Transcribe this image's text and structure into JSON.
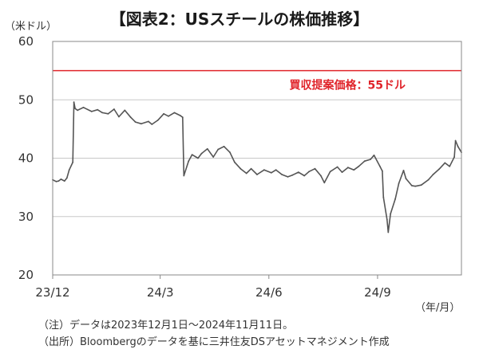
{
  "title": "【図表2：USスチールの株価推移】",
  "y_unit": "（米ドル）",
  "x_unit": "（年/月）",
  "notes": [
    "（注）データは2023年12月1日～2024年11月11日。",
    "（出所）Bloombergのデータを基に三井住友DSアセットマネジメント作成"
  ],
  "chart_data": {
    "type": "line",
    "title": "【図表2：USスチールの株価推移】",
    "xlabel": "（年/月）",
    "ylabel": "（米ドル）",
    "ylim": [
      20,
      60
    ],
    "yticks": [
      20,
      30,
      40,
      50,
      60
    ],
    "xticks": [
      "23/12",
      "24/3",
      "24/6",
      "24/9"
    ],
    "xlim": [
      "2023-12-01",
      "2024-11-11"
    ],
    "grid": "horizontal",
    "reference_line": {
      "value": 55,
      "label": "買収提案価格：55ドル",
      "color": "#e0242a"
    },
    "series": [
      {
        "color": "#555555",
        "points": [
          [
            "2023-12-01",
            36.3
          ],
          [
            "2023-12-04",
            36.0
          ],
          [
            "2023-12-06",
            36.1
          ],
          [
            "2023-12-08",
            36.4
          ],
          [
            "2023-12-11",
            36.1
          ],
          [
            "2023-12-13",
            36.6
          ],
          [
            "2023-12-15",
            38.0
          ],
          [
            "2023-12-18",
            39.3
          ],
          [
            "2023-12-19",
            49.6
          ],
          [
            "2023-12-20",
            48.5
          ],
          [
            "2023-12-22",
            48.2
          ],
          [
            "2023-12-27",
            48.7
          ],
          [
            "2024-01-03",
            48.0
          ],
          [
            "2024-01-08",
            48.3
          ],
          [
            "2024-01-12",
            47.8
          ],
          [
            "2024-01-17",
            47.6
          ],
          [
            "2024-01-22",
            48.4
          ],
          [
            "2024-01-26",
            47.1
          ],
          [
            "2024-01-31",
            48.2
          ],
          [
            "2024-02-05",
            47.0
          ],
          [
            "2024-02-09",
            46.2
          ],
          [
            "2024-02-14",
            45.9
          ],
          [
            "2024-02-20",
            46.3
          ],
          [
            "2024-02-23",
            45.8
          ],
          [
            "2024-02-28",
            46.5
          ],
          [
            "2024-03-04",
            47.6
          ],
          [
            "2024-03-08",
            47.2
          ],
          [
            "2024-03-13",
            47.8
          ],
          [
            "2024-03-18",
            47.3
          ],
          [
            "2024-03-20",
            47.0
          ],
          [
            "2024-03-21",
            37.0
          ],
          [
            "2024-03-25",
            39.5
          ],
          [
            "2024-03-28",
            40.6
          ],
          [
            "2024-04-02",
            40.0
          ],
          [
            "2024-04-05",
            40.8
          ],
          [
            "2024-04-10",
            41.6
          ],
          [
            "2024-04-15",
            40.2
          ],
          [
            "2024-04-19",
            41.5
          ],
          [
            "2024-04-24",
            42.0
          ],
          [
            "2024-04-29",
            41.0
          ],
          [
            "2024-05-03",
            39.3
          ],
          [
            "2024-05-08",
            38.2
          ],
          [
            "2024-05-13",
            37.4
          ],
          [
            "2024-05-17",
            38.2
          ],
          [
            "2024-05-22",
            37.2
          ],
          [
            "2024-05-28",
            38.0
          ],
          [
            "2024-06-03",
            37.5
          ],
          [
            "2024-06-07",
            38.0
          ],
          [
            "2024-06-12",
            37.2
          ],
          [
            "2024-06-17",
            36.8
          ],
          [
            "2024-06-21",
            37.1
          ],
          [
            "2024-06-26",
            37.6
          ],
          [
            "2024-07-01",
            37.0
          ],
          [
            "2024-07-05",
            37.7
          ],
          [
            "2024-07-10",
            38.2
          ],
          [
            "2024-07-15",
            37.0
          ],
          [
            "2024-07-18",
            35.8
          ],
          [
            "2024-07-23",
            37.7
          ],
          [
            "2024-07-29",
            38.5
          ],
          [
            "2024-08-02",
            37.6
          ],
          [
            "2024-08-07",
            38.4
          ],
          [
            "2024-08-12",
            38.0
          ],
          [
            "2024-08-16",
            38.6
          ],
          [
            "2024-08-21",
            39.5
          ],
          [
            "2024-08-26",
            39.8
          ],
          [
            "2024-08-29",
            40.5
          ],
          [
            "2024-09-03",
            38.6
          ],
          [
            "2024-09-05",
            37.8
          ],
          [
            "2024-09-06",
            33.3
          ],
          [
            "2024-09-09",
            29.5
          ],
          [
            "2024-09-10",
            27.3
          ],
          [
            "2024-09-12",
            30.5
          ],
          [
            "2024-09-16",
            33.0
          ],
          [
            "2024-09-19",
            35.7
          ],
          [
            "2024-09-23",
            37.9
          ],
          [
            "2024-09-25",
            36.5
          ],
          [
            "2024-09-30",
            35.3
          ],
          [
            "2024-10-03",
            35.2
          ],
          [
            "2024-10-08",
            35.4
          ],
          [
            "2024-10-14",
            36.3
          ],
          [
            "2024-10-18",
            37.2
          ],
          [
            "2024-10-23",
            38.1
          ],
          [
            "2024-10-28",
            39.2
          ],
          [
            "2024-11-01",
            38.6
          ],
          [
            "2024-11-05",
            40.2
          ],
          [
            "2024-11-06",
            43.0
          ],
          [
            "2024-11-08",
            42.0
          ],
          [
            "2024-11-11",
            41.0
          ]
        ]
      }
    ]
  }
}
